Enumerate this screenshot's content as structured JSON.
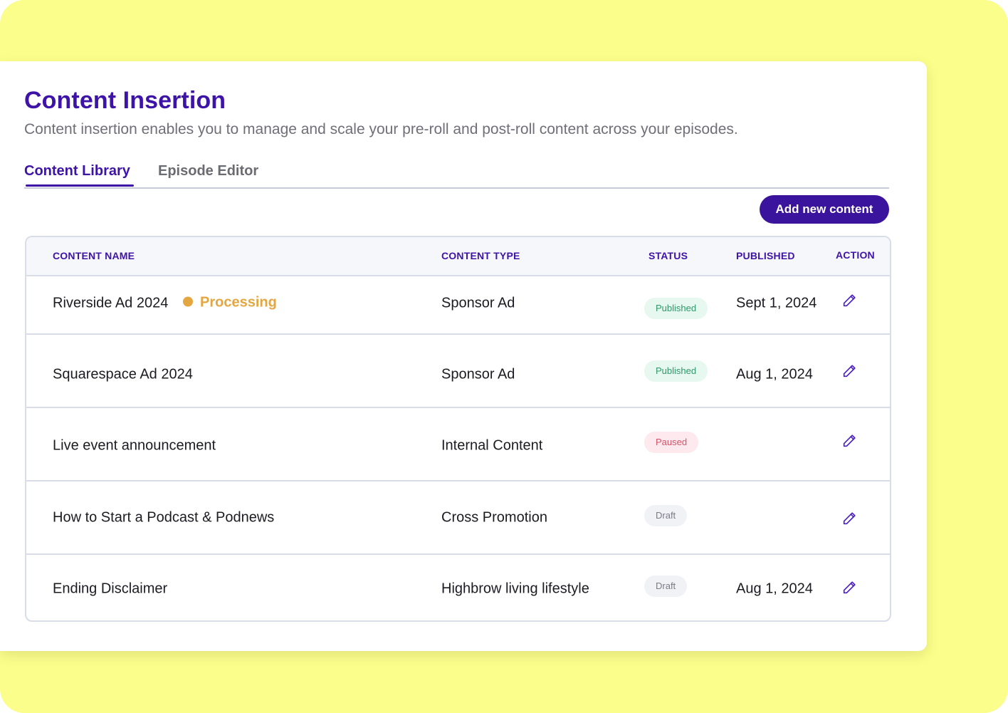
{
  "page": {
    "title": "Content Insertion",
    "subtitle": "Content insertion enables you to manage and scale your pre-roll and post-roll content across your episodes."
  },
  "tabs": [
    {
      "label": "Content Library",
      "active": true
    },
    {
      "label": "Episode Editor",
      "active": false
    }
  ],
  "actions": {
    "add_label": "Add new content"
  },
  "table": {
    "headers": {
      "name": "CONTENT NAME",
      "type": "CONTENT TYPE",
      "status": "STATUS",
      "published": "PUBLISHED",
      "action": "ACTION"
    },
    "rows": [
      {
        "name": "Riverside Ad 2024",
        "processing": "Processing",
        "type": "Sponsor Ad",
        "status": "Published",
        "published": "Sept 1, 2024",
        "action_icon": "pencil-icon"
      },
      {
        "name": "Squarespace Ad 2024",
        "processing": "",
        "type": "Sponsor Ad",
        "status": "Published",
        "published": "Aug 1, 2024",
        "action_icon": "pencil-icon"
      },
      {
        "name": "Live event announcement",
        "processing": "",
        "type": "Internal Content",
        "status": "Paused",
        "published": "",
        "action_icon": "pencil-icon"
      },
      {
        "name": "How to Start a Podcast & Podnews",
        "processing": "",
        "type": "Cross Promotion",
        "status": "Draft",
        "published": "",
        "action_icon": "pencil-icon"
      },
      {
        "name": "Ending Disclaimer",
        "processing": "",
        "type": "Highbrow living lifestyle",
        "status": "Draft",
        "published": "Aug 1, 2024",
        "action_icon": "pencil-icon"
      }
    ]
  },
  "colors": {
    "accent": "#3d13a8",
    "backdrop": "#fbfe8a",
    "processing": "#e3a640",
    "published": "#2e9a6a",
    "paused": "#d3546a",
    "draft": "#7a7c86"
  }
}
